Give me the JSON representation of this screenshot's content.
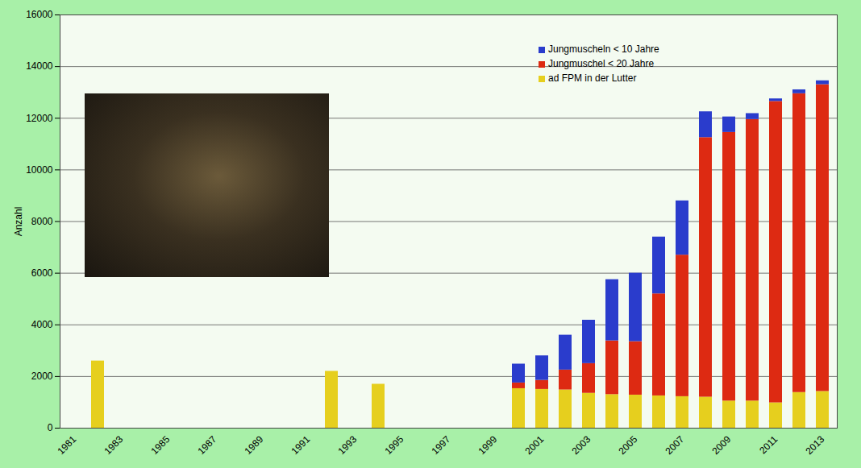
{
  "chart_data": {
    "type": "bar",
    "stacked": true,
    "y_label": "Anzahl",
    "categories": [
      "1981",
      null,
      "1983",
      null,
      "1985",
      null,
      "1987",
      null,
      "1989",
      null,
      "1991",
      null,
      "1993",
      null,
      "1995",
      null,
      "1997",
      null,
      "1999",
      null,
      "2001",
      null,
      "2003",
      null,
      "2005",
      null,
      "2007",
      null,
      "2009",
      null,
      "2011",
      null,
      "2013"
    ],
    "series": [
      {
        "name": "ad FPM in der Lutter",
        "color": "#e6cf1e",
        "values": [
          null,
          2600,
          null,
          null,
          null,
          null,
          null,
          null,
          null,
          null,
          null,
          2200,
          null,
          1700,
          null,
          null,
          null,
          null,
          null,
          1530,
          1500,
          1480,
          1350,
          1300,
          1280,
          1250,
          1220,
          1200,
          1050,
          1050,
          980,
          1380,
          1420
        ]
      },
      {
        "name": "Jungmuschel < 20 Jahre",
        "color": "#dd2a12",
        "values": [
          null,
          null,
          null,
          null,
          null,
          null,
          null,
          null,
          null,
          null,
          null,
          null,
          null,
          null,
          null,
          null,
          null,
          null,
          null,
          220,
          350,
          770,
          1150,
          2080,
          2070,
          3950,
          5480,
          10050,
          10400,
          10900,
          11670,
          11570,
          11880
        ]
      },
      {
        "name": "Jungmuscheln < 10 Jahre",
        "color": "#2a3ccc",
        "values": [
          null,
          null,
          null,
          null,
          null,
          null,
          null,
          null,
          null,
          null,
          null,
          null,
          null,
          null,
          null,
          null,
          null,
          null,
          null,
          730,
          950,
          1350,
          1680,
          2370,
          2650,
          2200,
          2100,
          1000,
          600,
          230,
          100,
          150,
          150
        ]
      }
    ],
    "ylim": [
      0,
      16000
    ],
    "yticks": [
      0,
      2000,
      4000,
      6000,
      8000,
      10000,
      12000,
      14000,
      16000
    ],
    "grid": true,
    "legend": "top-right"
  }
}
